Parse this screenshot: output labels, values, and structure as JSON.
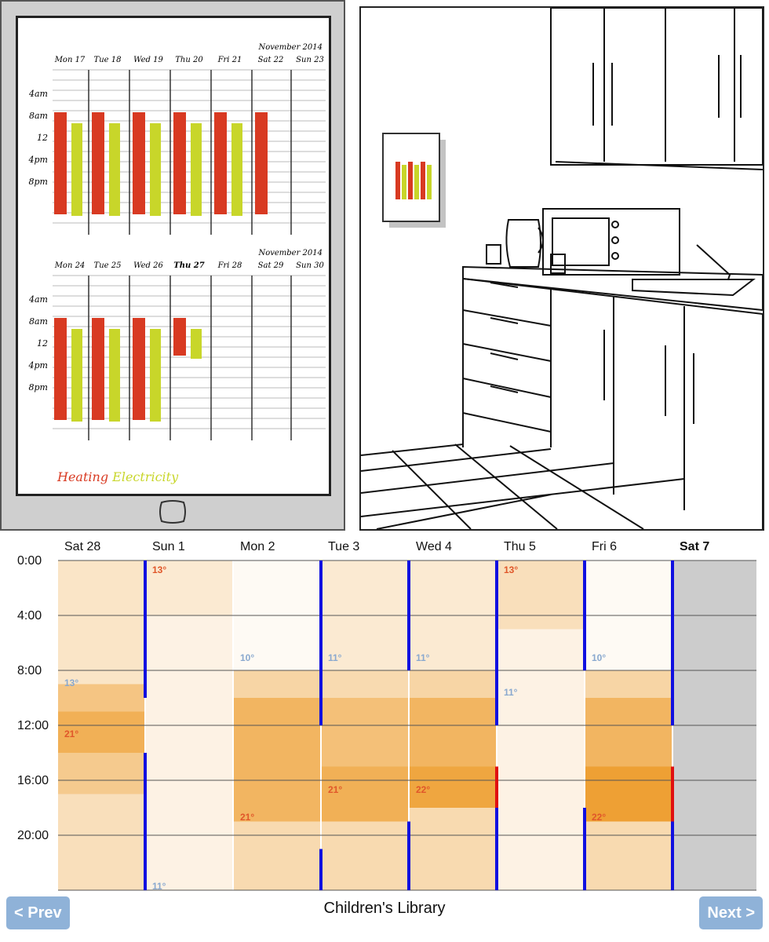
{
  "sketch": {
    "week1": {
      "month": "November 2014",
      "days": [
        "Mon 17",
        "Tue 18",
        "Wed 19",
        "Thu 20",
        "Fri 21",
        "Sat 22",
        "Sun 23"
      ]
    },
    "week2": {
      "month": "November 2014",
      "days": [
        "Mon 24",
        "Tue 25",
        "Wed 26",
        "Thu 27",
        "Fri 28",
        "Sat 29",
        "Sun 30"
      ],
      "current_day": "Thu 27"
    },
    "time_labels": [
      "4am",
      "8am",
      "12",
      "4pm",
      "8pm"
    ],
    "legend": {
      "heating": "Heating",
      "electricity": "Electricity"
    },
    "heating_color": "#d83a22",
    "electricity_color": "#c8d62a"
  },
  "calendar": {
    "days": [
      "Sat 28",
      "Sun 1",
      "Mon 2",
      "Tue 3",
      "Wed 4",
      "Thu 5",
      "Fri 6",
      "Sat 7"
    ],
    "current_day": "Sat 7",
    "times": [
      "0:00",
      "4:00",
      "8:00",
      "12:00",
      "16:00",
      "20:00"
    ],
    "temps": [
      {
        "day": "Sat 28",
        "value": "13°",
        "kind": "low"
      },
      {
        "day": "Sat 28",
        "value": "21°",
        "kind": "high"
      },
      {
        "day": "Sun 1",
        "value": "13°",
        "kind": "high"
      },
      {
        "day": "Sun 1",
        "value": "11°",
        "kind": "low"
      },
      {
        "day": "Mon 2",
        "value": "10°",
        "kind": "low"
      },
      {
        "day": "Mon 2",
        "value": "21°",
        "kind": "high"
      },
      {
        "day": "Tue 3",
        "value": "11°",
        "kind": "low"
      },
      {
        "day": "Tue 3",
        "value": "21°",
        "kind": "high"
      },
      {
        "day": "Wed 4",
        "value": "11°",
        "kind": "low"
      },
      {
        "day": "Wed 4",
        "value": "22°",
        "kind": "high"
      },
      {
        "day": "Thu 5",
        "value": "13°",
        "kind": "high"
      },
      {
        "day": "Thu 5",
        "value": "11°",
        "kind": "low"
      },
      {
        "day": "Fri 6",
        "value": "10°",
        "kind": "low"
      },
      {
        "day": "Fri 6",
        "value": "22°",
        "kind": "high"
      }
    ],
    "low_color": "#8aa9cf",
    "high_color": "#e0572a",
    "on_color": "#1010e0",
    "heat_color": "#e01010"
  },
  "footer": {
    "title": "Children's Library",
    "prev_label": "< Prev",
    "next_label": "Next >"
  }
}
